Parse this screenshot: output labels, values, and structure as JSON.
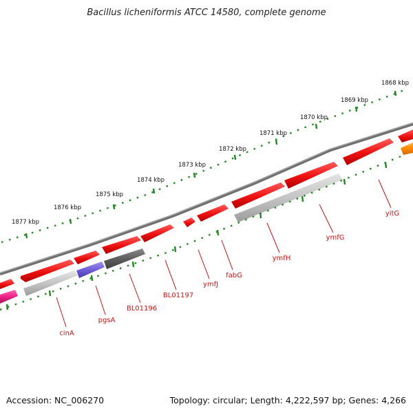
{
  "title": "Bacillus licheniformis ATCC 14580, complete genome",
  "footer": {
    "accession": "Accession: NC_006270",
    "topology": "Topology: circular; Length: 4,222,597 bp; Genes: 4,266"
  },
  "ticks": [
    {
      "label": "1868 kbp"
    },
    {
      "label": "1869 kbp"
    },
    {
      "label": "1870 kbp"
    },
    {
      "label": "1871 kbp"
    },
    {
      "label": "1872 kbp"
    },
    {
      "label": "1873 kbp"
    },
    {
      "label": "1874 kbp"
    },
    {
      "label": "1875 kbp"
    },
    {
      "label": "1876 kbp"
    },
    {
      "label": "1877 kbp"
    }
  ],
  "gene_labels": [
    {
      "name": "cinA"
    },
    {
      "name": "pgsA"
    },
    {
      "name": "BL01196"
    },
    {
      "name": "BL01197"
    },
    {
      "name": "ymfJ"
    },
    {
      "name": "fabG"
    },
    {
      "name": "ymfH"
    },
    {
      "name": "ymfG"
    },
    {
      "name": "yitG"
    }
  ],
  "colors": {
    "gene_red": "#ee1111",
    "gene_gray": "#c8c8c8",
    "gene_dark": "#666666",
    "gene_purple": "#7766dd",
    "gene_pink": "#ee2288",
    "gene_orange": "#ff8800",
    "backbone": "#777777",
    "dots": "#228822",
    "label_red": "#cc1111"
  }
}
